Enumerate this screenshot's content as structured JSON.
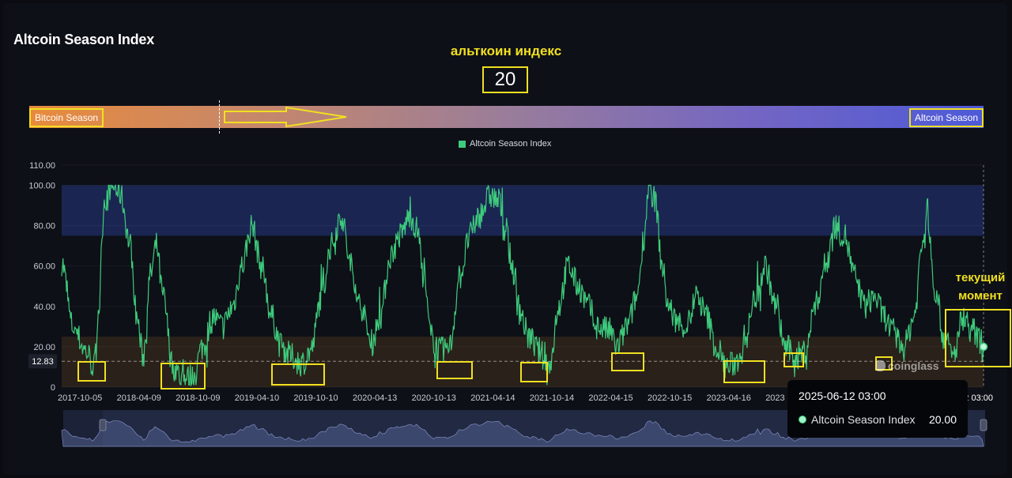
{
  "header": {
    "title": "Altcoin Season Index"
  },
  "annotations": {
    "index_label": "альткоин индекс",
    "index_value": "20",
    "current_moment": [
      "текущий",
      "момент"
    ],
    "highlight_color": "#f0e020"
  },
  "season_bar": {
    "left_label": "Bitcoin Season",
    "right_label": "Altcoin Season",
    "color_start": "#e88a3c",
    "color_end": "#4e5ad8"
  },
  "legend": {
    "series_label": "Altcoin Season Index",
    "color": "#3ecb7c"
  },
  "tooltip": {
    "date": "2025-06-12 03:00",
    "series": "Altcoin Season Index",
    "value": "20.00"
  },
  "watermark": {
    "text": "coinglass"
  },
  "chart_data": {
    "type": "line",
    "title": "Altcoin Season Index",
    "xlabel": "",
    "ylabel": "",
    "ylim": [
      0,
      110
    ],
    "x_range": [
      "2017-09-01",
      "2025-06-12"
    ],
    "y_ticks": [
      "110.00",
      "100.00",
      "80.00",
      "60.00",
      "40.00",
      "20.00",
      "0"
    ],
    "x_ticks": [
      "2017-10-05",
      "2018-04-09",
      "2018-10-09",
      "2019-04-10",
      "2019-10-10",
      "2020-04-13",
      "2020-10-13",
      "2021-04-14",
      "2021-10-14",
      "2022-04-15",
      "2022-10-15",
      "2023-04-16",
      "2023"
    ],
    "x_tick_tail": "2 03:00",
    "current_line": {
      "value": 12.83,
      "label": "12.83"
    },
    "bands": [
      {
        "from": 75,
        "to": 100,
        "color": "#1a2552"
      },
      {
        "from": 0,
        "to": 25,
        "color": "#2a211a"
      }
    ],
    "series_color": "#3ecb7c",
    "grid": true,
    "legend": "top-center",
    "series": [
      {
        "name": "Altcoin Season Index",
        "x": [
          "2017-09-01",
          "2017-10-05",
          "2017-11-15",
          "2017-12-10",
          "2017-12-25",
          "2018-01-10",
          "2018-02-01",
          "2018-03-01",
          "2018-04-01",
          "2018-04-20",
          "2018-05-10",
          "2018-06-01",
          "2018-06-20",
          "2018-07-10",
          "2018-08-10",
          "2018-09-10",
          "2018-10-09",
          "2018-11-10",
          "2018-12-10",
          "2019-01-10",
          "2019-02-10",
          "2019-03-10",
          "2019-04-10",
          "2019-05-10",
          "2019-06-10",
          "2019-07-10",
          "2019-08-10",
          "2019-09-10",
          "2019-10-10",
          "2019-11-10",
          "2019-12-10",
          "2020-01-10",
          "2020-02-10",
          "2020-03-10",
          "2020-04-13",
          "2020-05-10",
          "2020-06-10",
          "2020-07-10",
          "2020-08-10",
          "2020-09-01",
          "2020-09-20",
          "2020-10-13",
          "2020-11-10",
          "2020-12-10",
          "2021-01-10",
          "2021-02-10",
          "2021-03-10",
          "2021-04-14",
          "2021-05-10",
          "2021-06-01",
          "2021-06-20",
          "2021-07-10",
          "2021-08-10",
          "2021-09-10",
          "2021-10-14",
          "2021-11-10",
          "2021-12-10",
          "2022-01-10",
          "2022-02-10",
          "2022-03-10",
          "2022-04-15",
          "2022-05-10",
          "2022-06-10",
          "2022-07-10",
          "2022-08-01",
          "2022-08-15",
          "2022-09-05",
          "2022-09-25",
          "2022-10-15",
          "2022-11-10",
          "2022-12-10",
          "2023-01-10",
          "2023-02-10",
          "2023-03-10",
          "2023-04-16",
          "2023-05-10",
          "2023-06-10",
          "2023-07-10",
          "2023-08-10",
          "2023-09-10",
          "2023-10-10",
          "2023-11-10",
          "2023-12-10",
          "2024-01-10",
          "2024-02-10",
          "2024-03-10",
          "2024-04-10",
          "2024-05-10",
          "2024-06-10",
          "2024-07-10",
          "2024-08-10",
          "2024-09-10",
          "2024-10-10",
          "2024-11-10",
          "2024-12-05",
          "2024-12-20",
          "2025-01-10",
          "2025-02-10",
          "2025-03-10",
          "2025-04-10",
          "2025-05-10",
          "2025-06-12"
        ],
        "values": [
          62,
          30,
          18,
          10,
          40,
          92,
          100,
          96,
          70,
          35,
          15,
          55,
          70,
          45,
          10,
          4,
          5,
          20,
          35,
          30,
          40,
          60,
          80,
          60,
          35,
          20,
          15,
          12,
          18,
          45,
          70,
          85,
          60,
          40,
          22,
          35,
          65,
          75,
          85,
          78,
          55,
          25,
          18,
          20,
          55,
          75,
          85,
          95,
          92,
          78,
          60,
          40,
          25,
          18,
          10,
          40,
          60,
          50,
          40,
          30,
          28,
          20,
          30,
          45,
          75,
          100,
          92,
          60,
          40,
          32,
          30,
          45,
          35,
          20,
          10,
          12,
          25,
          45,
          60,
          40,
          20,
          15,
          18,
          40,
          60,
          80,
          75,
          55,
          40,
          45,
          35,
          25,
          20,
          35,
          70,
          88,
          50,
          25,
          15,
          35,
          28,
          20
        ]
      }
    ]
  }
}
